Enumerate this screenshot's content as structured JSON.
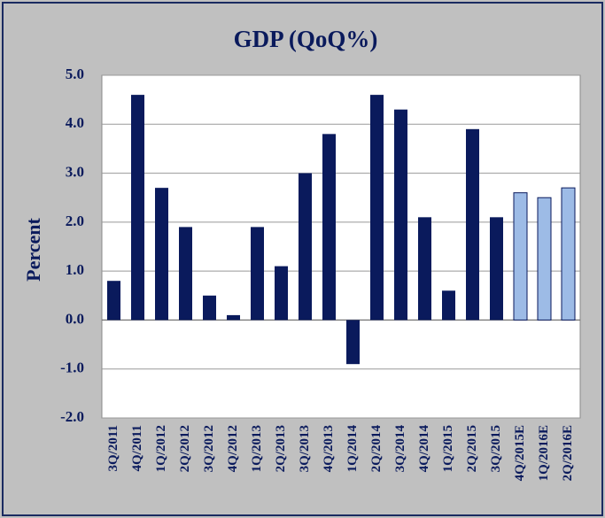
{
  "chart_data": {
    "type": "bar",
    "title": "GDP (QoQ%)",
    "y_label": "Percent",
    "categories": [
      "3Q/2011",
      "4Q/2011",
      "1Q/2012",
      "2Q/2012",
      "3Q/2012",
      "4Q/2012",
      "1Q/2013",
      "2Q/2013",
      "3Q/2013",
      "4Q/2013",
      "1Q/2014",
      "2Q/2014",
      "3Q/2014",
      "4Q/2014",
      "1Q/2015",
      "2Q/2015",
      "3Q/2015",
      "4Q/2015E",
      "1Q/2016E",
      "2Q/2016E"
    ],
    "values": [
      0.8,
      4.6,
      2.7,
      1.9,
      0.5,
      0.1,
      1.9,
      1.1,
      3.0,
      3.8,
      -0.9,
      4.6,
      4.3,
      2.1,
      0.6,
      3.9,
      2.1,
      2.6,
      2.5,
      2.7
    ],
    "colors": [
      "#0a1a5c",
      "#0a1a5c",
      "#0a1a5c",
      "#0a1a5c",
      "#0a1a5c",
      "#0a1a5c",
      "#0a1a5c",
      "#0a1a5c",
      "#0a1a5c",
      "#0a1a5c",
      "#0a1a5c",
      "#0a1a5c",
      "#0a1a5c",
      "#0a1a5c",
      "#0a1a5c",
      "#0a1a5c",
      "#0a1a5c",
      "#9dbbe6",
      "#9dbbe6",
      "#9dbbe6"
    ],
    "ylim": [
      -2,
      5
    ],
    "yticks": [
      {
        "value": -2,
        "label": "-2.0"
      },
      {
        "value": -1,
        "label": "-1.0"
      },
      {
        "value": 0,
        "label": "0.0"
      },
      {
        "value": 1,
        "label": "1.0"
      },
      {
        "value": 2,
        "label": "2.0"
      },
      {
        "value": 3,
        "label": "3.0"
      },
      {
        "value": 4,
        "label": "4.0"
      },
      {
        "value": 5,
        "label": "5.0"
      }
    ],
    "grid": true
  }
}
